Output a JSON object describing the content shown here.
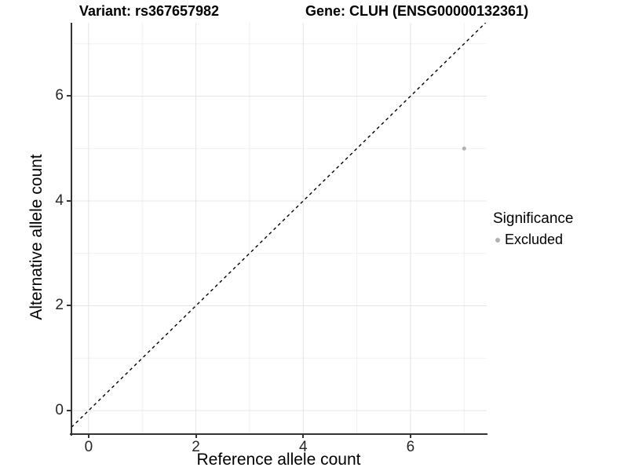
{
  "header": {
    "variant_title": "Variant: rs367657982",
    "gene_title": "Gene: CLUH (ENSG00000132361)"
  },
  "chart_data": {
    "type": "scatter",
    "xlabel": "Reference allele count",
    "ylabel": "Alternative allele count",
    "xlim": [
      -0.32,
      7.42
    ],
    "ylim": [
      -0.45,
      7.4
    ],
    "xticks": [
      0,
      2,
      4,
      6
    ],
    "yticks": [
      0,
      2,
      4,
      6
    ],
    "major_gridlines_x": [
      0,
      2,
      4,
      6
    ],
    "major_gridlines_y": [
      0,
      2,
      4,
      6
    ],
    "minor_gridlines_x": [
      1,
      3,
      5,
      7
    ],
    "minor_gridlines_y": [
      1,
      3,
      5,
      7
    ],
    "grid": "on",
    "legend_position": "right",
    "series": [
      {
        "name": "Excluded",
        "color": "#b0b0b0",
        "points": [
          {
            "x": 7,
            "y": 5
          }
        ]
      }
    ],
    "reference_line": {
      "type": "identity",
      "slope": 1,
      "intercept": 0,
      "style": "dashed",
      "color": "#000000"
    },
    "legend": {
      "title": "Significance",
      "entries": [
        {
          "label": "Excluded",
          "color": "#b0b0b0",
          "marker": "point"
        }
      ]
    }
  },
  "colors": {
    "background": "#ffffff",
    "axis_line": "#333333",
    "tick": "#333333",
    "major_grid": "#e4e4e4",
    "minor_grid": "#f0f0f0",
    "tick_label": "#262626",
    "point": "#b0b0b0",
    "dashed_line": "#000000"
  }
}
